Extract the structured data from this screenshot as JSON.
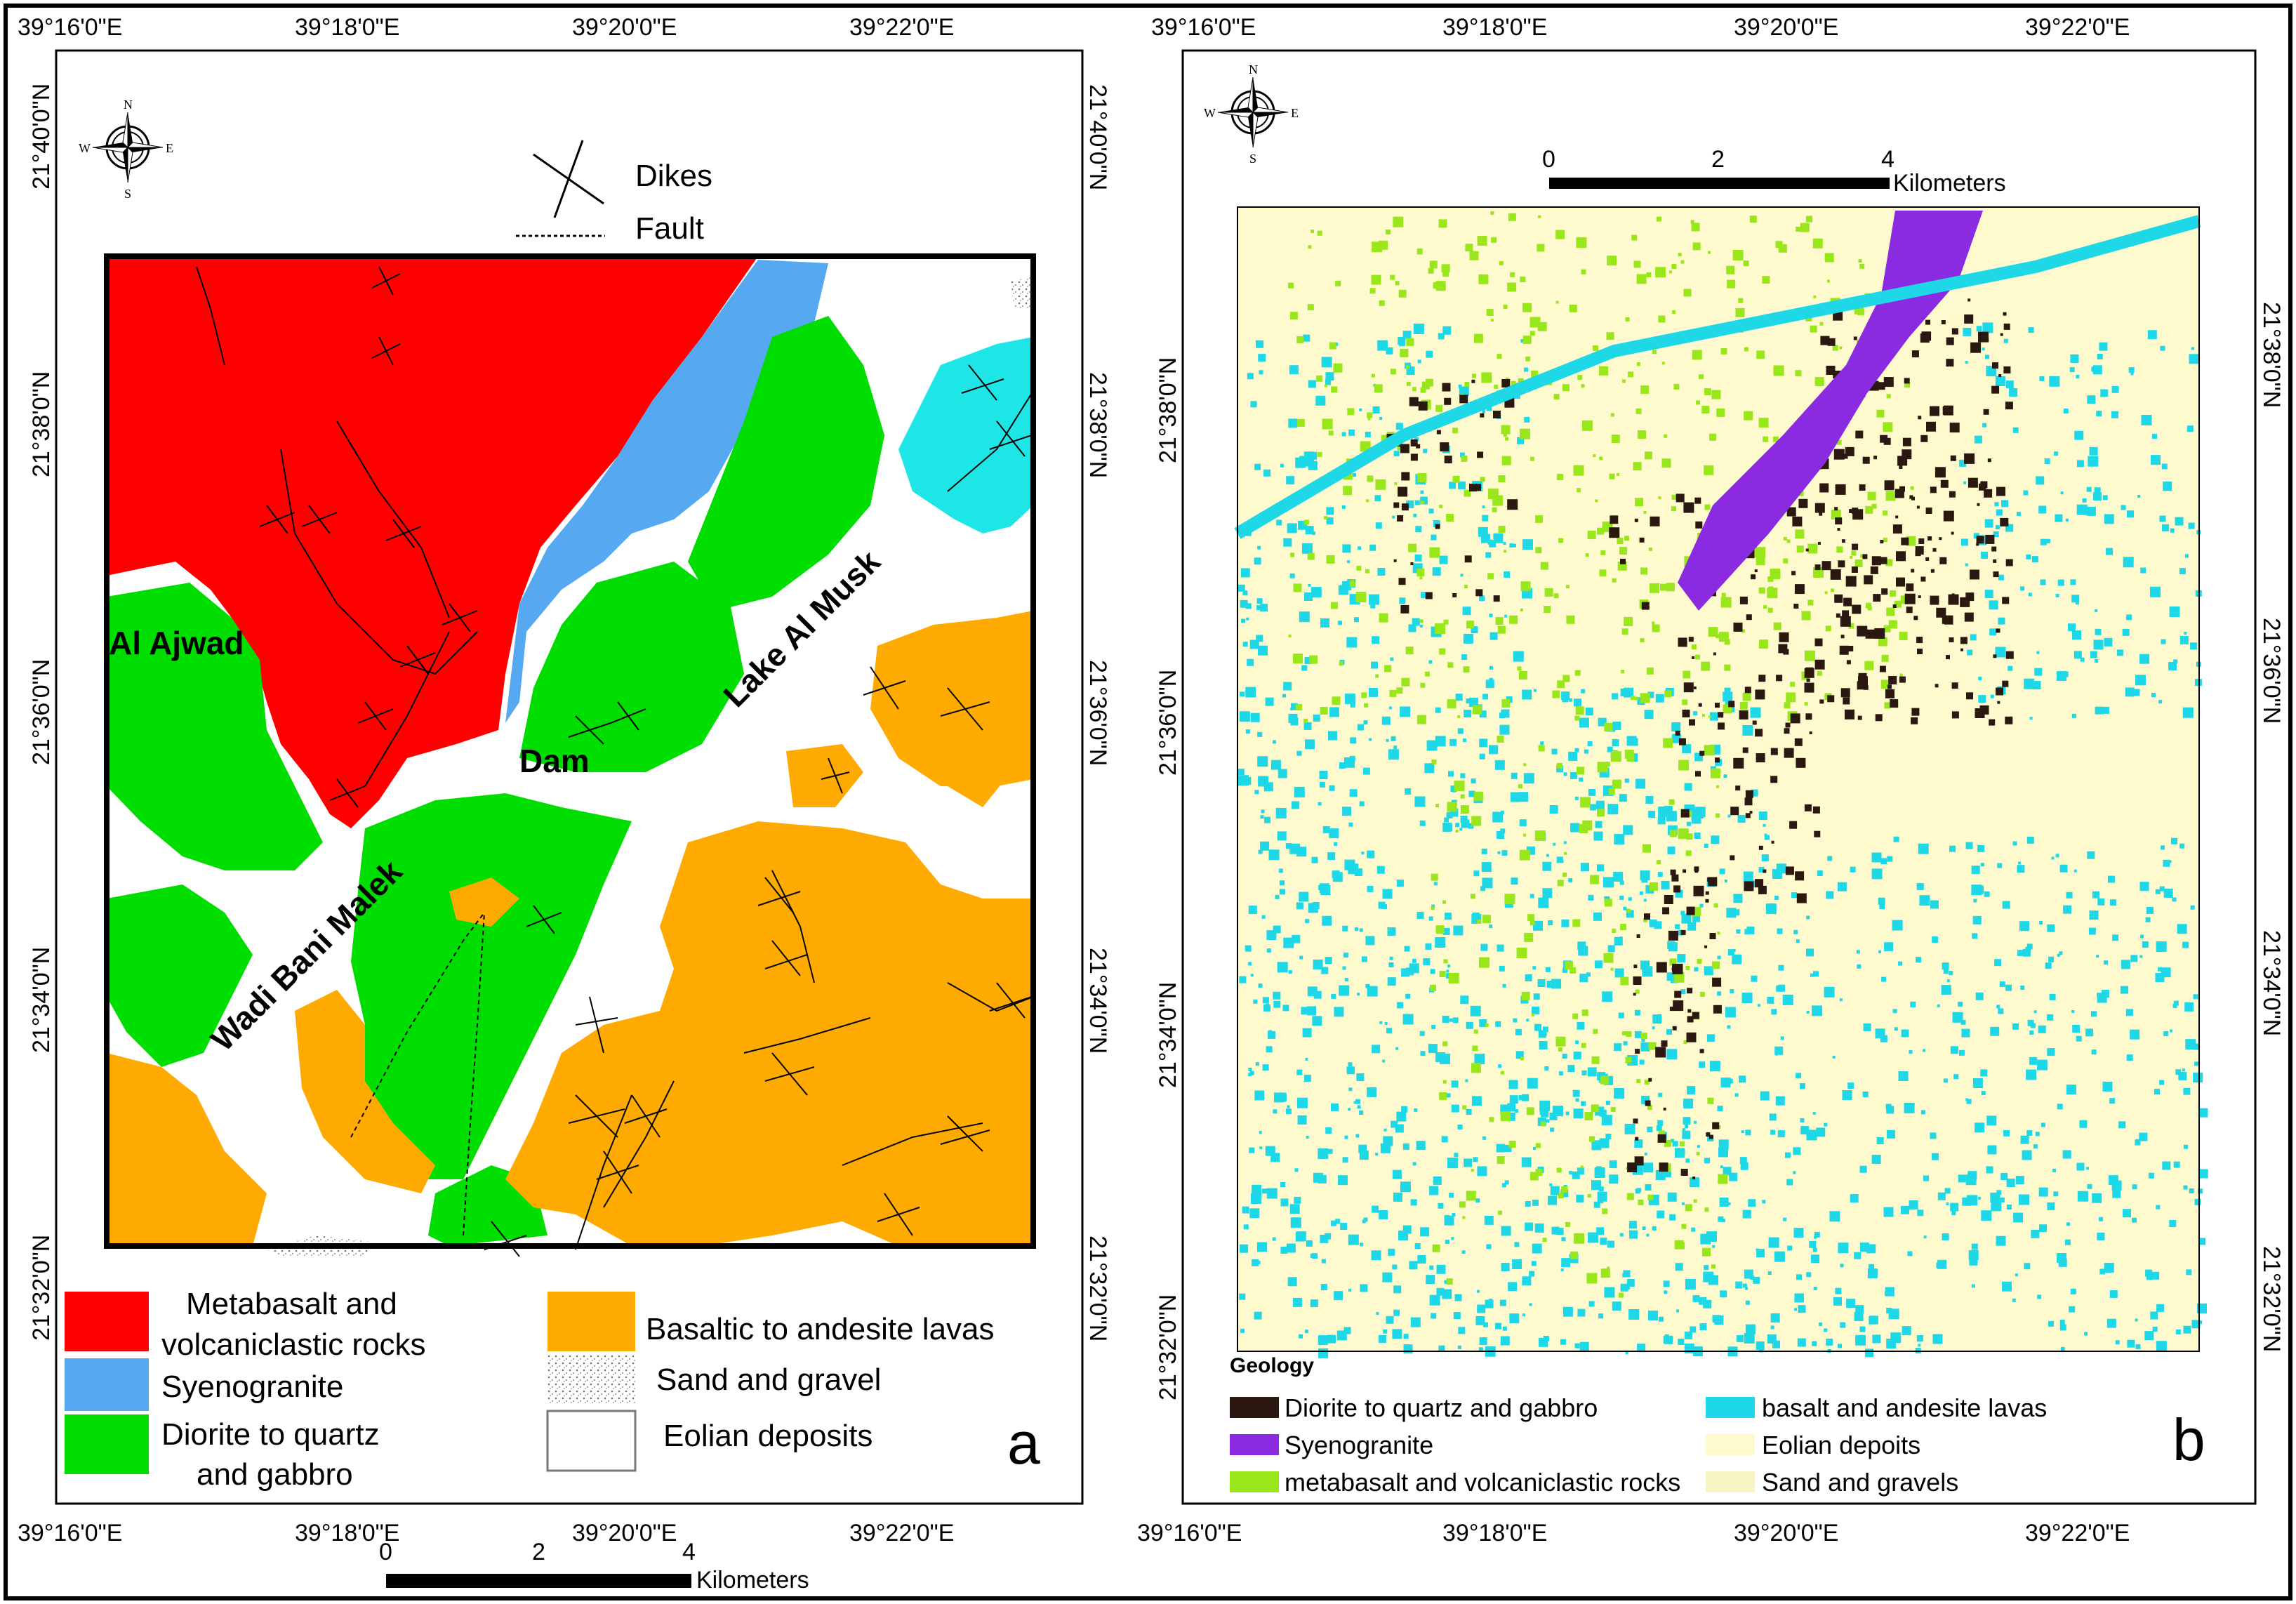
{
  "panel_a": {
    "panel_label": "a",
    "top_ticks": [
      "39°16'0\"E",
      "39°18'0\"E",
      "39°20'0\"E",
      "39°22'0\"E"
    ],
    "bottom_ticks": [
      "39°16'0\"E",
      "39°18'0\"E",
      "39°20'0\"E",
      "39°22'0\"E"
    ],
    "left_ticks": [
      "21°40'0\"N",
      "21°38'0\"N",
      "21°36'0\"N",
      "21°34'0\"N",
      "21°32'0\"N"
    ],
    "right_ticks": [
      "21°40'0\"N",
      "21°38'0\"N",
      "21°36'0\"N",
      "21°34'0\"N",
      "21°32'0\"N"
    ],
    "compass": {
      "n": "N",
      "s": "S",
      "e": "E",
      "w": "W"
    },
    "symbols": {
      "dikes": "Dikes",
      "fault": "Fault"
    },
    "place_labels": {
      "al_ajwad": "Al Ajwad",
      "dam": "Dam",
      "lake": "Lake Al Musk",
      "wadi": "Wadi Bani Malek"
    },
    "scalebar": {
      "ticks": [
        "0",
        "2",
        "4"
      ],
      "unit": "Kilometers"
    },
    "legend": {
      "metabasalt_1": "Metabasalt and",
      "metabasalt_2": "volcaniclastic rocks",
      "syenogranite": "Syenogranite",
      "diorite_1": "Diorite to quartz",
      "diorite_2": "and gabbro",
      "basaltic": "Basaltic to andesite lavas",
      "sand": "Sand and gravel",
      "eolian": "Eolian deposits"
    },
    "colors": {
      "metabasalt": "#FF0000",
      "syenogranite": "#56A8F0",
      "diorite": "#00DD00",
      "basaltic": "#FFAA00",
      "cyan": "#1EE6E6",
      "eolian": "#FFFFFF"
    }
  },
  "panel_b": {
    "panel_label": "b",
    "top_ticks": [
      "39°16'0\"E",
      "39°18'0\"E",
      "39°20'0\"E",
      "39°22'0\"E"
    ],
    "bottom_ticks": [
      "39°16'0\"E",
      "39°18'0\"E",
      "39°20'0\"E",
      "39°22'0\"E"
    ],
    "left_ticks": [
      "21°38'0\"N",
      "21°36'0\"N",
      "21°34'0\"N",
      "21°32'0\"N"
    ],
    "right_ticks": [
      "21°38'0\"N",
      "21°36'0\"N",
      "21°34'0\"N",
      "21°32'0\"N"
    ],
    "compass": {
      "n": "N",
      "s": "S",
      "e": "E",
      "w": "W"
    },
    "scalebar": {
      "ticks": [
        "0",
        "2",
        "4"
      ],
      "unit": "Kilometers"
    },
    "legend_title": "Geology",
    "legend": {
      "diorite": "Diorite to quartz and gabbro",
      "syenogranite": "Syenogranite",
      "metabasalt": "metabasalt and volcaniclastic rocks",
      "basalt": "basalt and andesite lavas",
      "eolian": "Eolian depoits",
      "sand": "Sand and gravels"
    },
    "colors": {
      "diorite": "#2B1810",
      "syenogranite": "#8A2BE2",
      "metabasalt": "#99E61A",
      "basalt": "#1ED8E8",
      "eolian": "#FFFACD",
      "sand": "#F8F5C4"
    }
  }
}
